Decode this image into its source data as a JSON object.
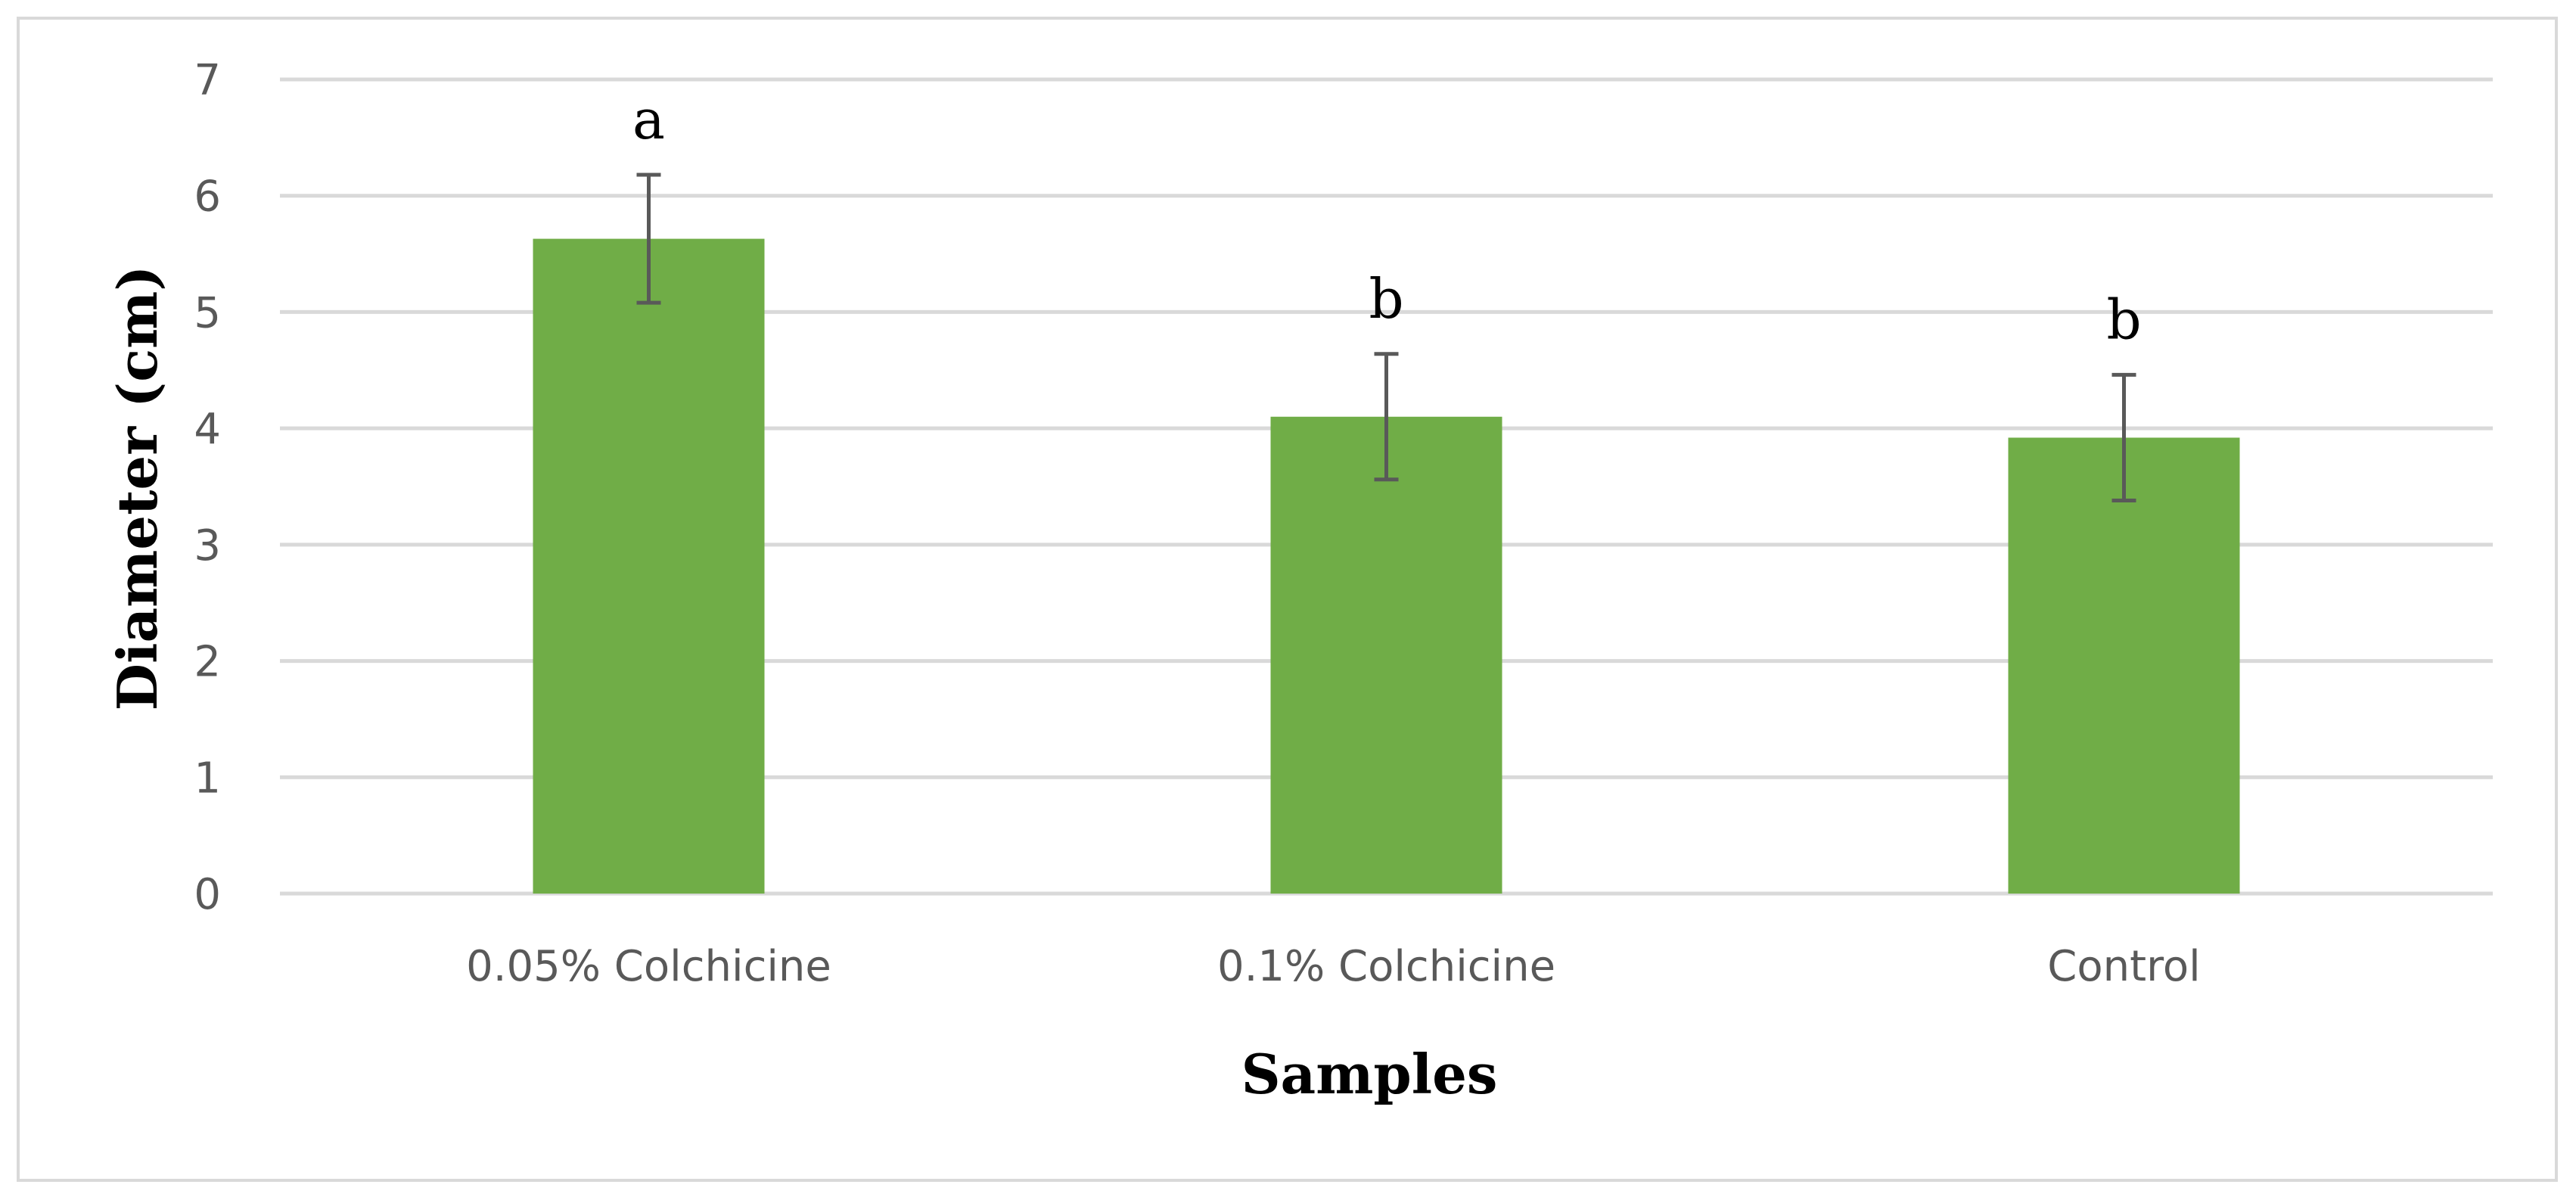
{
  "chart_data": {
    "type": "bar",
    "categories": [
      "0.05% Colchicine",
      "0.1% Colchicine",
      "Control"
    ],
    "values": [
      5.63,
      4.1,
      3.92
    ],
    "error": [
      0.55,
      0.54,
      0.54
    ],
    "significance_labels": [
      "a",
      "b",
      "b"
    ],
    "title": "",
    "xlabel": "Samples",
    "ylabel": "Diameter (cm)",
    "ylim": [
      0,
      7
    ],
    "yticks": [
      "0",
      "1",
      "2",
      "3",
      "4",
      "5",
      "6",
      "7"
    ],
    "grid": true,
    "legend": "none",
    "colors": {
      "bar": "#70ad47",
      "error_bar": "#595959",
      "grid": "#d9d9d9",
      "frame": "#d9d9d9",
      "tick_text": "#595959"
    }
  }
}
